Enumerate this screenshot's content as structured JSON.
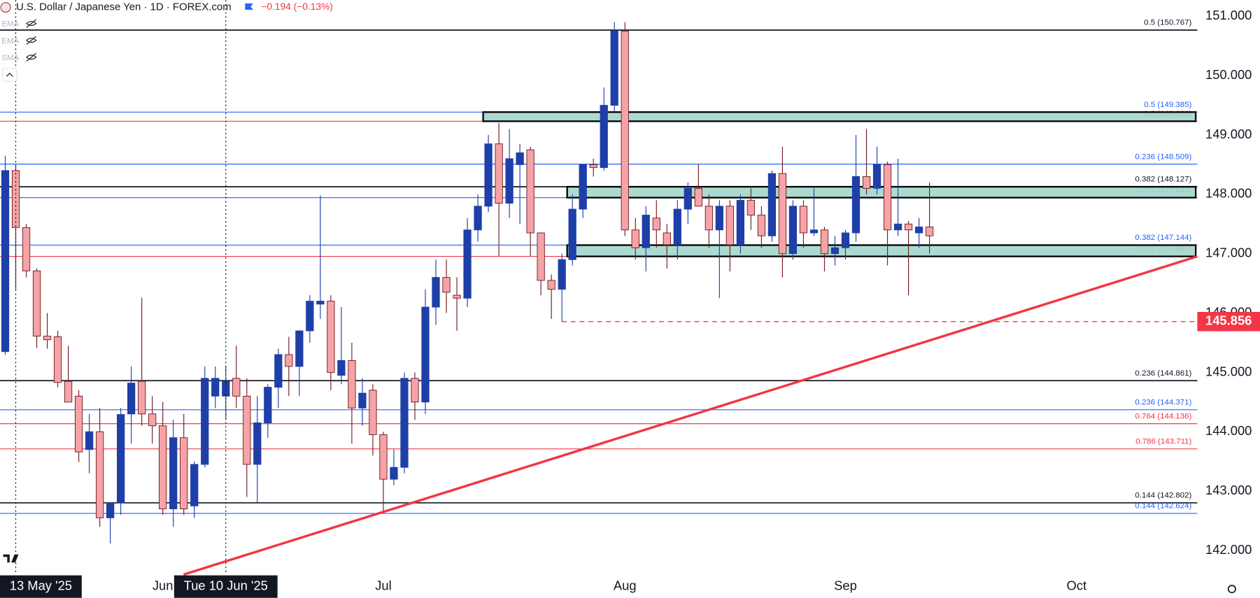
{
  "header": {
    "title": "U.S. Dollar / Japanese Yen · 1D · FOREX.com",
    "change": "−0.194 (−0.13%)",
    "indicators": [
      "EMA",
      "EMA",
      "SMA"
    ]
  },
  "chart_data": {
    "type": "candlestick",
    "categories": [
      null,
      "13 May '25",
      null,
      null,
      null,
      null,
      null,
      null,
      null,
      null,
      null,
      null,
      null,
      null,
      null,
      "Jun",
      null,
      null,
      null,
      null,
      null,
      "Tue 10 Jun '25",
      null,
      null,
      null,
      null,
      null,
      null,
      null,
      null,
      null,
      null,
      null,
      null,
      null,
      null,
      "Jul",
      null,
      null,
      null,
      null,
      null,
      null,
      null,
      null,
      null,
      null,
      null,
      null,
      null,
      null,
      null,
      null,
      null,
      null,
      null,
      null,
      null,
      null,
      "Aug",
      null,
      null,
      null,
      null,
      null,
      null,
      null,
      null,
      null,
      null,
      null,
      null,
      null,
      null,
      null,
      null,
      null,
      null,
      null,
      null,
      "Sep",
      null,
      null,
      null,
      null,
      null,
      null,
      null,
      null,
      null,
      null,
      null,
      null,
      null,
      null,
      null,
      null,
      null,
      null,
      null,
      null,
      null,
      "Oct",
      null,
      null,
      null,
      null,
      null,
      null,
      null,
      null,
      null,
      null,
      null
    ],
    "highlighted_categories": [
      1,
      21
    ],
    "open": [
      145.35,
      148.4,
      147.44,
      146.71,
      145.61,
      145.6,
      144.85,
      144.6,
      143.7,
      144.0,
      142.55,
      142.8,
      144.3,
      144.85,
      144.3,
      144.1,
      142.7,
      143.9,
      142.75,
      143.45,
      144.6,
      144.6,
      144.9,
      144.6,
      143.45,
      144.15,
      144.75,
      145.3,
      145.1,
      145.7,
      146.15,
      146.2,
      144.95,
      145.2,
      144.4,
      144.7,
      143.95,
      143.2,
      143.4,
      144.9,
      144.5,
      146.1,
      146.6,
      146.3,
      146.25,
      147.4,
      147.8,
      148.85,
      147.85,
      148.5,
      148.75,
      147.35,
      146.55,
      146.4,
      146.9,
      147.75,
      148.5,
      148.45,
      149.5,
      150.75,
      147.4,
      147.1,
      147.6,
      147.35,
      147.15,
      147.75,
      148.1,
      147.8,
      147.4,
      147.8,
      147.15,
      147.9,
      147.65,
      147.3,
      148.35,
      147.0,
      147.8,
      147.35,
      147.4,
      147.0,
      147.1,
      147.35,
      148.3,
      148.1,
      148.5,
      147.4,
      147.5,
      147.35,
      147.45,
      null,
      null,
      null,
      null,
      null,
      null,
      null,
      null,
      null,
      null,
      null,
      null,
      null,
      null,
      null,
      null,
      null,
      null,
      null,
      null,
      null,
      null,
      null,
      null,
      null
    ],
    "high": [
      148.65,
      148.5,
      147.5,
      146.75,
      146.0,
      145.7,
      145.45,
      144.7,
      144.3,
      144.4,
      142.8,
      144.4,
      145.1,
      146.26,
      144.6,
      144.5,
      144.2,
      144.3,
      143.5,
      145.1,
      145.1,
      145.1,
      145.45,
      144.9,
      144.6,
      144.8,
      145.4,
      145.6,
      145.7,
      146.3,
      147.98,
      146.3,
      146.1,
      145.5,
      144.9,
      144.8,
      144.0,
      143.7,
      145.0,
      145.0,
      146.4,
      146.9,
      146.9,
      146.6,
      147.6,
      148.0,
      149.0,
      149.2,
      149.1,
      148.85,
      148.8,
      147.35,
      146.65,
      147.0,
      148.0,
      148.5,
      148.6,
      149.8,
      150.9,
      150.9,
      147.6,
      147.8,
      147.9,
      147.5,
      147.9,
      148.2,
      148.5,
      148.0,
      147.9,
      147.9,
      148.0,
      148.1,
      147.8,
      148.4,
      148.8,
      147.9,
      147.9,
      148.1,
      147.45,
      147.3,
      147.4,
      149.0,
      149.1,
      148.8,
      148.55,
      148.6,
      147.55,
      147.6,
      148.2,
      null,
      null,
      null,
      null,
      null,
      null,
      null,
      null,
      null,
      null,
      null,
      null,
      null,
      null,
      null,
      null,
      null,
      null,
      null,
      null,
      null,
      null,
      null,
      null,
      null
    ],
    "low": [
      145.3,
      146.4,
      146.6,
      145.41,
      145.4,
      144.75,
      144.5,
      143.49,
      143.3,
      142.4,
      142.12,
      142.6,
      143.8,
      144.1,
      143.8,
      142.6,
      142.4,
      142.6,
      142.55,
      143.4,
      144.4,
      144.2,
      144.4,
      142.9,
      142.81,
      143.9,
      144.4,
      144.6,
      144.6,
      145.5,
      145.9,
      144.7,
      144.8,
      143.8,
      144.1,
      143.6,
      142.65,
      143.1,
      143.3,
      144.2,
      144.3,
      145.8,
      146.0,
      145.7,
      146.1,
      147.2,
      147.7,
      146.95,
      147.6,
      147.5,
      146.95,
      146.3,
      145.9,
      145.856,
      146.8,
      147.6,
      148.3,
      148.4,
      149.4,
      147.3,
      146.9,
      146.7,
      147.1,
      146.75,
      146.9,
      147.5,
      147.8,
      147.1,
      146.25,
      146.7,
      147.0,
      147.4,
      147.1,
      147.2,
      146.6,
      146.9,
      147.1,
      147.3,
      146.7,
      146.8,
      146.9,
      147.2,
      148.0,
      148.0,
      146.8,
      147.3,
      146.3,
      147.1,
      147.0,
      null,
      null,
      null,
      null,
      null,
      null,
      null,
      null,
      null,
      null,
      null,
      null,
      null,
      null,
      null,
      null,
      null,
      null,
      null,
      null,
      null,
      null,
      null,
      null,
      null
    ],
    "close": [
      148.4,
      147.44,
      146.71,
      145.61,
      145.55,
      144.83,
      144.5,
      143.66,
      144.0,
      142.55,
      142.8,
      144.29,
      144.82,
      144.3,
      144.1,
      142.7,
      143.9,
      142.7,
      143.45,
      144.9,
      144.9,
      144.85,
      144.6,
      143.45,
      144.15,
      144.75,
      145.3,
      145.1,
      145.7,
      146.2,
      146.2,
      145.0,
      145.2,
      144.4,
      144.65,
      143.95,
      143.2,
      143.4,
      144.9,
      144.5,
      146.1,
      146.6,
      146.35,
      146.25,
      147.4,
      147.8,
      148.85,
      147.85,
      148.6,
      148.7,
      147.35,
      146.55,
      146.4,
      146.9,
      147.75,
      148.5,
      148.45,
      149.5,
      150.75,
      147.4,
      147.1,
      147.65,
      147.4,
      147.15,
      147.75,
      148.1,
      147.8,
      147.4,
      147.8,
      147.15,
      147.9,
      147.65,
      147.3,
      148.35,
      147.0,
      147.8,
      147.35,
      147.4,
      147.0,
      147.1,
      147.35,
      148.3,
      148.1,
      148.5,
      147.4,
      147.5,
      147.4,
      147.45,
      147.3,
      null,
      null,
      null,
      null,
      null,
      null,
      null,
      null,
      null,
      null,
      null,
      null,
      null,
      null,
      null,
      null,
      null,
      null,
      null,
      null,
      null,
      null,
      null,
      null,
      null
    ],
    "up_color": "#1e3fa8",
    "down_color": "#f5a3a7",
    "down_border": "#6e1b22",
    "ylim": [
      141.594,
      151.271
    ],
    "yticks": [
      {
        "value": 142,
        "label": "142.000"
      },
      {
        "value": 143,
        "label": "143.000"
      },
      {
        "value": 144,
        "label": "144.000"
      },
      {
        "value": 145,
        "label": "145.000"
      },
      {
        "value": 146,
        "label": "146.000"
      },
      {
        "value": 147,
        "label": "147.000"
      },
      {
        "value": 148,
        "label": "148.000"
      },
      {
        "value": 149,
        "label": "149.000"
      },
      {
        "value": 150,
        "label": "150.000"
      },
      {
        "value": 151,
        "label": "151.000"
      }
    ],
    "grid": false,
    "levels": [
      {
        "value": 150.767,
        "label": "0.5 (150.767)",
        "color": "#131722"
      },
      {
        "value": 149.385,
        "label": "0.5 (149.385)",
        "color": "#2962ff"
      },
      {
        "value": 149.231,
        "label": "0.5 (149.231)",
        "color": "#f23645"
      },
      {
        "value": 148.509,
        "label": "0.236 (148.509)",
        "color": "#2962ff"
      },
      {
        "value": 148.127,
        "label": "0.382 (148.127)",
        "color": "#131722"
      },
      {
        "value": 147.944,
        "label": "0.236 (147.944)",
        "color": "#2962ff"
      },
      {
        "value": 147.144,
        "label": "0.382 (147.144)",
        "color": "#2962ff"
      },
      {
        "value": 146.954,
        "label": "0.618 (146.954)",
        "color": "#f23645"
      },
      {
        "value": 144.861,
        "label": "0.236 (144.861)",
        "color": "#131722"
      },
      {
        "value": 144.371,
        "label": "0.236 (144.371)",
        "color": "#2962ff"
      },
      {
        "value": 144.136,
        "label": "0.764 (144.136)",
        "color": "#f23645"
      },
      {
        "value": 143.711,
        "label": "0.786 (143.711)",
        "color": "#f23645"
      },
      {
        "value": 142.802,
        "label": "0.144 (142.802)",
        "color": "#131722"
      },
      {
        "value": 142.624,
        "label": "0.144 (142.624)",
        "color": "#2962ff"
      }
    ],
    "zones": [
      {
        "from": 46,
        "low": 149.231,
        "high": 149.385,
        "color": "#a3d6cb"
      },
      {
        "from": 54,
        "low": 147.944,
        "high": 148.127,
        "color": "#a3d6cb"
      },
      {
        "from": 54,
        "low": 146.954,
        "high": 147.144,
        "color": "#a3d6cb"
      }
    ],
    "trendline": {
      "x": [
        36,
        112
      ],
      "y": [
        142.65,
        146.87
      ],
      "color": "#f23645"
    },
    "level_line": {
      "value": 145.856,
      "from": 53,
      "color": "#f23645"
    }
  }
}
